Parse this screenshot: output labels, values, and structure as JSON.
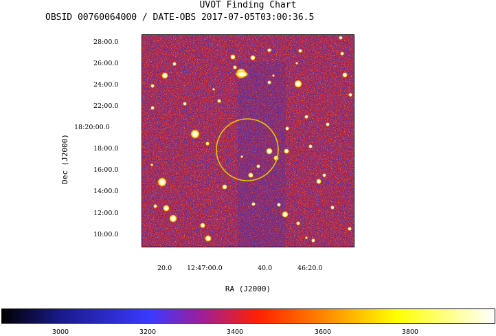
{
  "header": {
    "title": "UVOT Finding Chart",
    "subtitle": "OBSID 00760064000 / DATE-OBS 2017-07-05T03:00:36.5"
  },
  "axes": {
    "xlabel": "RA (J2000)",
    "ylabel": "Dec (J2000)",
    "y_ticks": [
      "28:00.0",
      "26:00.0",
      "24:00.0",
      "22:00.0",
      "18:20:00.0",
      "18:00.0",
      "16:00.0",
      "14:00.0",
      "12:00.0",
      "10:00.0"
    ],
    "x_ticks": [
      "20.0",
      "12:47:00.0",
      "40.0",
      "46:20.0"
    ]
  },
  "colorbar": {
    "ticks": [
      "3000",
      "3200",
      "3400",
      "3600",
      "3800"
    ],
    "colors": [
      "#000000",
      "#1a1a8c",
      "#3a3aff",
      "#9a1fa0",
      "#ff2000",
      "#ff8c00",
      "#ffff00",
      "#ffffff"
    ]
  },
  "image": {
    "colors": {
      "background_low": "#3030b0",
      "background_mid": "#c02040",
      "background_high": "#ff6a00",
      "circle": "#e6c800"
    }
  }
}
